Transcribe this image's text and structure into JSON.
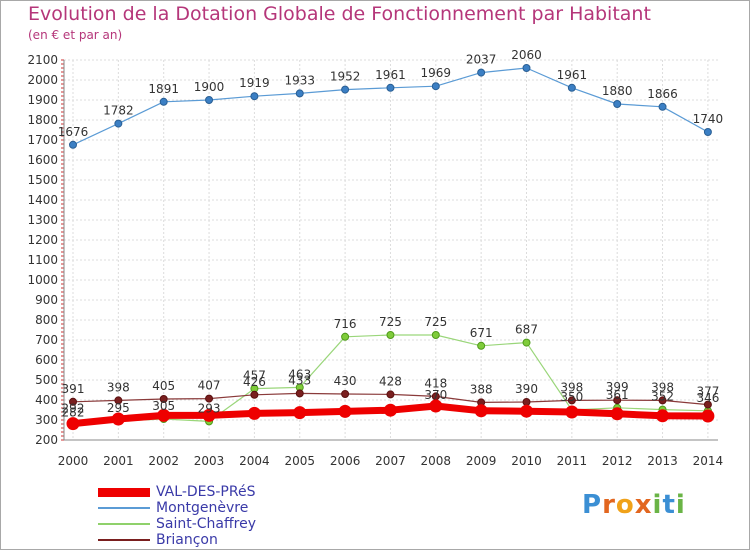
{
  "title": "Evolution de la Dotation Globale de Fonctionnement par Habitant",
  "subtitle": "(en € et par an)",
  "logo": {
    "letters": [
      "P",
      "r",
      "o",
      "x",
      "i",
      "t",
      "i"
    ],
    "colors": [
      "#3b8fd4",
      "#e2661f",
      "#f0a21a",
      "#e2661f",
      "#6ab446",
      "#3b8fd4",
      "#6ab446"
    ]
  },
  "chart_data": {
    "type": "line",
    "title": "Evolution de la Dotation Globale de Fonctionnement par Habitant",
    "subtitle": "(en € et par an)",
    "xlabel": "",
    "ylabel": "",
    "x": [
      "2000",
      "2001",
      "2002",
      "2003",
      "2004",
      "2005",
      "2006",
      "2007",
      "2008",
      "2009",
      "2010",
      "2011",
      "2012",
      "2013",
      "2014"
    ],
    "ylim": [
      200,
      2100
    ],
    "yticks": [
      "200",
      "300",
      "400",
      "500",
      "600",
      "700",
      "800",
      "900",
      "1000",
      "1100",
      "1200",
      "1300",
      "1400",
      "1500",
      "1600",
      "1700",
      "1800",
      "1900",
      "2000",
      "2100"
    ],
    "grid": true,
    "legend": "bottom-left",
    "series": [
      {
        "name": "VAL-DES-PRéS",
        "color": "#ee0000",
        "values": [
          282,
          305,
          323,
          323,
          333,
          337,
          343,
          349,
          370,
          346,
          344,
          340,
          331,
          321,
          320
        ],
        "labels": [
          "282",
          "",
          "",
          "",
          "",
          "",
          "",
          "",
          "370",
          "",
          "",
          "",
          "",
          "",
          ""
        ]
      },
      {
        "name": "Montgenèvre",
        "color": "#5b9bd5",
        "values": [
          1676,
          1782,
          1891,
          1900,
          1919,
          1933,
          1952,
          1961,
          1969,
          2037,
          2060,
          1961,
          1880,
          1866,
          1740
        ],
        "labels": [
          "1676",
          "1782",
          "1891",
          "1900",
          "1919",
          "1933",
          "1952",
          "1961",
          "1969",
          "2037",
          "2060",
          "1961",
          "1880",
          "1866",
          "1740"
        ]
      },
      {
        "name": "Saint-Chaffrey",
        "color": "#8fd16b",
        "values": [
          292,
          295,
          305,
          293,
          457,
          463,
          716,
          725,
          725,
          671,
          687,
          350,
          361,
          352,
          346
        ],
        "labels": [
          "292",
          "295",
          "305",
          "293",
          "457",
          "463",
          "716",
          "725",
          "725",
          "671",
          "687",
          "350",
          "361",
          "352",
          "346"
        ]
      },
      {
        "name": "Briançon",
        "color": "#7a1f1f",
        "values": [
          391,
          398,
          405,
          407,
          426,
          433,
          430,
          428,
          418,
          388,
          390,
          398,
          399,
          398,
          377
        ],
        "labels": [
          "391",
          "398",
          "405",
          "407",
          "426",
          "433",
          "430",
          "428",
          "418",
          "388",
          "390",
          "398",
          "399",
          "398",
          "377"
        ]
      }
    ]
  }
}
